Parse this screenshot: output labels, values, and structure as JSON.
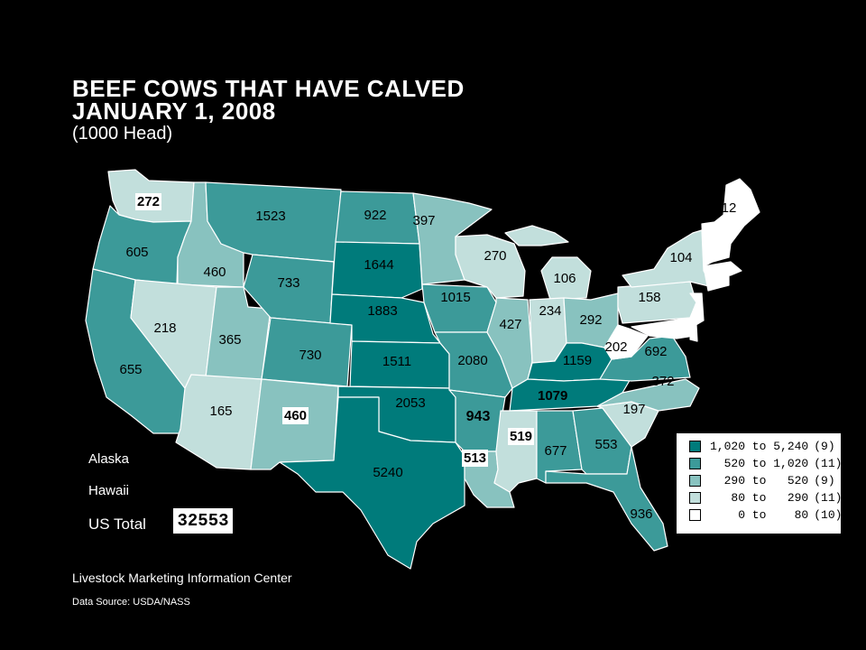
{
  "title_line1": "BEEF  COWS  THAT  HAVE  CALVED",
  "title_line2": "JANUARY  1,  2008",
  "subtitle": "(1000 Head)",
  "colors": {
    "c1": "#007b7b",
    "c2": "#3c9a99",
    "c3": "#88c2bf",
    "c4": "#c2dfdc",
    "c5": "#ffffff"
  },
  "legend": [
    {
      "range": "1,020 to 5,240",
      "count": "(9)",
      "color": "#007b7b"
    },
    {
      "range": "  520 to 1,020",
      "count": "(11)",
      "color": "#3c9a99"
    },
    {
      "range": "  290 to   520",
      "count": "(9)",
      "color": "#88c2bf"
    },
    {
      "range": "   80 to   290",
      "count": "(11)",
      "color": "#c2dfdc"
    },
    {
      "range": "    0 to    80",
      "count": "(10)",
      "color": "#ffffff"
    }
  ],
  "states": {
    "WA": "272",
    "OR": "605",
    "CA": "655",
    "ID": "460",
    "NV": "218",
    "UT": "365",
    "AZ": "165",
    "MT": "1523",
    "WY": "733",
    "CO": "730",
    "NM": "460",
    "ND": "922",
    "SD": "1644",
    "NE": "1883",
    "KS": "1511",
    "OK": "2053",
    "TX": "5240",
    "MN": "397",
    "IA": "1015",
    "MO": "2080",
    "AR": "943",
    "LA": "513",
    "WI": "270",
    "IL": "427",
    "MI": "106",
    "IN": "234",
    "OH": "292",
    "KY": "1159",
    "TN": "1079",
    "MS": "519",
    "AL": "677",
    "GA": "553",
    "FL": "936",
    "SC": "197",
    "NC": "372",
    "VA": "692",
    "WV": "202",
    "PA": "158",
    "NY": "104",
    "ME": "12"
  },
  "alaska_label": "Alaska",
  "hawaii_label": "Hawaii",
  "us_total_label": "US Total",
  "us_total_value": "32553",
  "source_line1": "Livestock Marketing Information Center",
  "source_line2": "Data Source:  USDA/NASS"
}
